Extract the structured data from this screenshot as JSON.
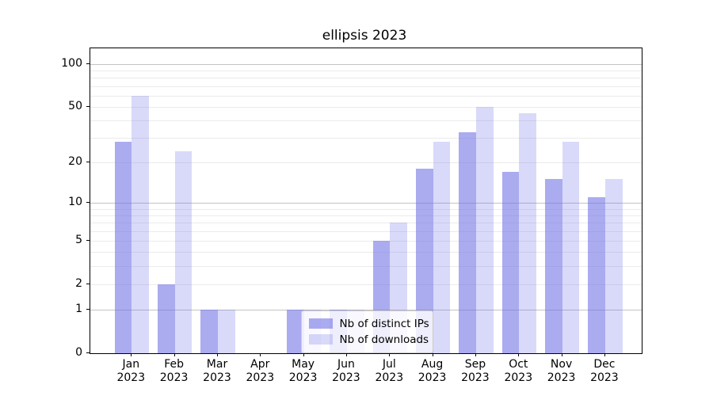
{
  "title": "ellipsis 2023",
  "colors": {
    "distinct_ips_bar": "#a9a9f0",
    "downloads_bar": "#d9d9f8",
    "grid_major": "#c3c3c3",
    "grid_minor": "#ebebeb",
    "axis": "#000000",
    "legend_border": "#cccccc"
  },
  "legend": {
    "entries": [
      "Nb of distinct IPs",
      "Nb of downloads"
    ],
    "position": "lower center"
  },
  "chart_data": {
    "type": "bar",
    "title": "ellipsis 2023",
    "xlabel": "",
    "ylabel": "",
    "months": [
      "Jan",
      "Feb",
      "Mar",
      "Apr",
      "May",
      "Jun",
      "Jul",
      "Aug",
      "Sep",
      "Oct",
      "Nov",
      "Dec"
    ],
    "year_label": "2023",
    "categories": [
      "Jan 2023",
      "Feb 2023",
      "Mar 2023",
      "Apr 2023",
      "May 2023",
      "Jun 2023",
      "Jul 2023",
      "Aug 2023",
      "Sep 2023",
      "Oct 2023",
      "Nov 2023",
      "Dec 2023"
    ],
    "series": [
      {
        "name": "Nb of distinct IPs",
        "color": "#a9a9f0",
        "values": [
          28,
          2,
          1,
          0,
          1,
          1,
          5,
          18,
          33,
          17,
          15,
          11
        ]
      },
      {
        "name": "Nb of downloads",
        "color": "#d9d9f8",
        "values": [
          60,
          24,
          1,
          0,
          1,
          1,
          7,
          28,
          50,
          45,
          28,
          15
        ]
      }
    ],
    "yscale": "log1p",
    "ylim": [
      0,
      128
    ],
    "y_ticks": [
      0,
      1,
      2,
      5,
      10,
      20,
      50,
      100
    ],
    "y_major_gridlines": [
      1,
      10,
      100
    ],
    "y_minor_gridlines": [
      2,
      3,
      4,
      5,
      6,
      7,
      8,
      9,
      20,
      30,
      40,
      50,
      60,
      70,
      80,
      90
    ],
    "grid": true,
    "legend_position": "lower center"
  }
}
